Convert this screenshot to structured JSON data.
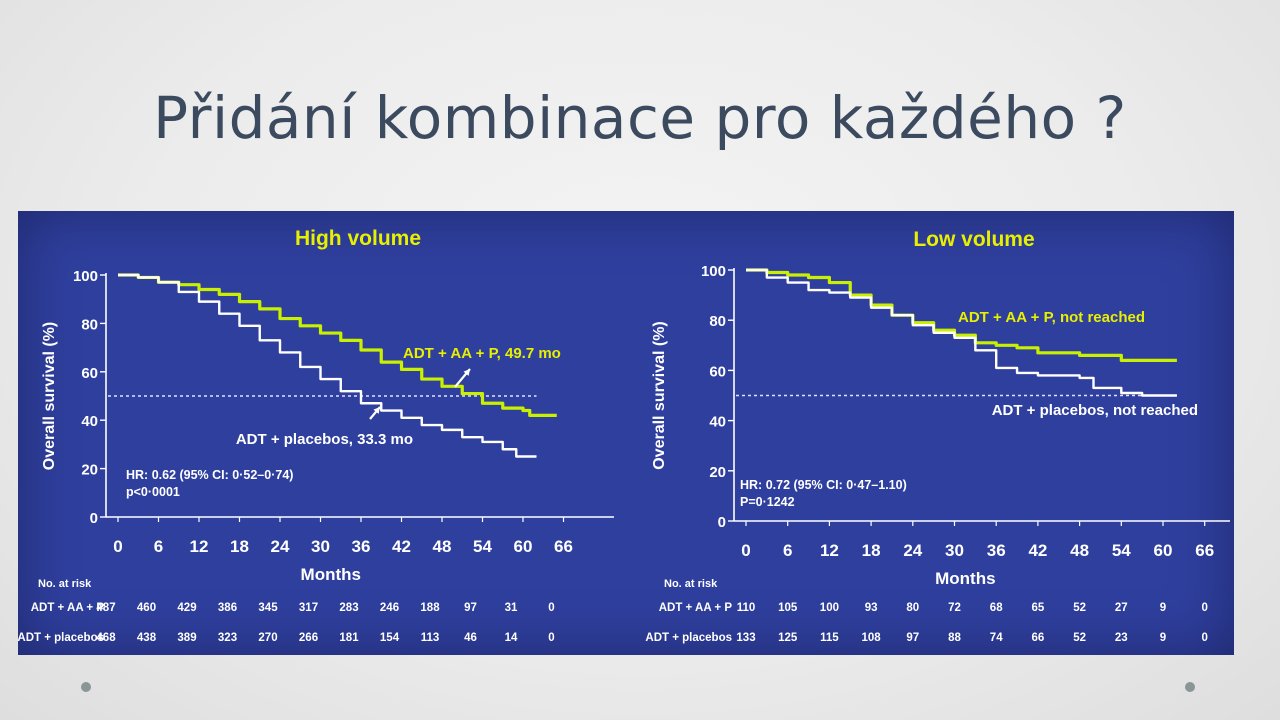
{
  "slide": {
    "title": "Přidání kombinace pro každého ?"
  },
  "colors": {
    "background": "#2f3f9e",
    "combo": "#c8f000",
    "placebo": "#ffffff",
    "panelTitle": "#e8f000",
    "text": "#ffffff"
  },
  "chart_data": [
    {
      "type": "line",
      "title": "High volume",
      "xlabel": "Months",
      "ylabel": "Overall survival (%)",
      "xlim": [
        0,
        66
      ],
      "ylim": [
        0,
        100
      ],
      "xticks": [
        0,
        6,
        12,
        18,
        24,
        30,
        36,
        42,
        48,
        54,
        60,
        66
      ],
      "yticks": [
        0,
        20,
        40,
        60,
        80,
        100
      ],
      "reference_line": 50,
      "series": [
        {
          "name": "ADT + AA + P, 49.7 mo",
          "color": "#c8f000",
          "points": [
            [
              0,
              100
            ],
            [
              3,
              99
            ],
            [
              6,
              97
            ],
            [
              9,
              96
            ],
            [
              12,
              94
            ],
            [
              15,
              92
            ],
            [
              18,
              89
            ],
            [
              21,
              86
            ],
            [
              24,
              82
            ],
            [
              27,
              79
            ],
            [
              30,
              76
            ],
            [
              33,
              73
            ],
            [
              36,
              69
            ],
            [
              39,
              64
            ],
            [
              42,
              61
            ],
            [
              45,
              57
            ],
            [
              48,
              54
            ],
            [
              51,
              51
            ],
            [
              54,
              47
            ],
            [
              57,
              45
            ],
            [
              60,
              44
            ],
            [
              61,
              42
            ],
            [
              65,
              42
            ]
          ]
        },
        {
          "name": "ADT + placebos, 33.3 mo",
          "color": "#ffffff",
          "points": [
            [
              0,
              100
            ],
            [
              3,
              99
            ],
            [
              6,
              97
            ],
            [
              9,
              93
            ],
            [
              12,
              89
            ],
            [
              15,
              84
            ],
            [
              18,
              79
            ],
            [
              21,
              73
            ],
            [
              24,
              68
            ],
            [
              27,
              62
            ],
            [
              30,
              57
            ],
            [
              33,
              52
            ],
            [
              36,
              47
            ],
            [
              39,
              44
            ],
            [
              42,
              41
            ],
            [
              45,
              38
            ],
            [
              48,
              36
            ],
            [
              51,
              33
            ],
            [
              54,
              31
            ],
            [
              57,
              28
            ],
            [
              59,
              25
            ],
            [
              62,
              25
            ]
          ]
        }
      ],
      "annotations": {
        "combo": "ADT + AA + P, 49.7 mo",
        "placebo": "ADT + placebos, 33.3 mo"
      },
      "stats": {
        "hr": "HR: 0.62 (95% CI: 0·52–0·74)",
        "p": "p<0·0001"
      },
      "risk_table": {
        "header": "No. at risk",
        "rows": [
          {
            "label": "ADT + AA + P",
            "values": [
              "487",
              "460",
              "429",
              "386",
              "345",
              "317",
              "283",
              "246",
              "188",
              "97",
              "31",
              "0"
            ]
          },
          {
            "label": "ADT + placebos",
            "values": [
              "468",
              "438",
              "389",
              "323",
              "270",
              "266",
              "181",
              "154",
              "113",
              "46",
              "14",
              "0"
            ]
          }
        ]
      }
    },
    {
      "type": "line",
      "title": "Low volume",
      "xlabel": "Months",
      "ylabel": "Overall survival (%)",
      "xlim": [
        0,
        66
      ],
      "ylim": [
        0,
        100
      ],
      "xticks": [
        0,
        6,
        12,
        18,
        24,
        30,
        36,
        42,
        48,
        54,
        60,
        66
      ],
      "yticks": [
        0,
        20,
        40,
        60,
        80,
        100
      ],
      "reference_line": 50,
      "series": [
        {
          "name": "ADT + AA + P, not reached",
          "color": "#c8f000",
          "points": [
            [
              0,
              100
            ],
            [
              3,
              99
            ],
            [
              6,
              98
            ],
            [
              9,
              97
            ],
            [
              12,
              95
            ],
            [
              15,
              90
            ],
            [
              18,
              86
            ],
            [
              21,
              82
            ],
            [
              24,
              79
            ],
            [
              27,
              76
            ],
            [
              30,
              74
            ],
            [
              33,
              71
            ],
            [
              36,
              70
            ],
            [
              39,
              69
            ],
            [
              42,
              67
            ],
            [
              45,
              67
            ],
            [
              48,
              66
            ],
            [
              54,
              64
            ],
            [
              57,
              64
            ],
            [
              62,
              64
            ]
          ]
        },
        {
          "name": "ADT + placebos, not reached",
          "color": "#ffffff",
          "points": [
            [
              0,
              100
            ],
            [
              3,
              97
            ],
            [
              6,
              95
            ],
            [
              9,
              92
            ],
            [
              12,
              91
            ],
            [
              15,
              89
            ],
            [
              18,
              85
            ],
            [
              21,
              82
            ],
            [
              24,
              78
            ],
            [
              27,
              75
            ],
            [
              30,
              73
            ],
            [
              33,
              68
            ],
            [
              36,
              61
            ],
            [
              39,
              59
            ],
            [
              42,
              58
            ],
            [
              45,
              58
            ],
            [
              48,
              57
            ],
            [
              50,
              53
            ],
            [
              54,
              51
            ],
            [
              57,
              50
            ],
            [
              62,
              50
            ]
          ]
        }
      ],
      "annotations": {
        "combo": "ADT + AA + P, not reached",
        "placebo": "ADT + placebos, not reached"
      },
      "stats": {
        "hr": "HR: 0.72 (95% CI: 0·47–1.10)",
        "p": "P=0·1242"
      },
      "risk_table": {
        "header": "No. at risk",
        "rows": [
          {
            "label": "ADT + AA + P",
            "values": [
              "110",
              "105",
              "100",
              "93",
              "80",
              "72",
              "68",
              "65",
              "52",
              "27",
              "9",
              "0"
            ]
          },
          {
            "label": "ADT + placebos",
            "values": [
              "133",
              "125",
              "115",
              "108",
              "97",
              "88",
              "74",
              "66",
              "52",
              "23",
              "9",
              "0"
            ]
          }
        ]
      }
    }
  ]
}
